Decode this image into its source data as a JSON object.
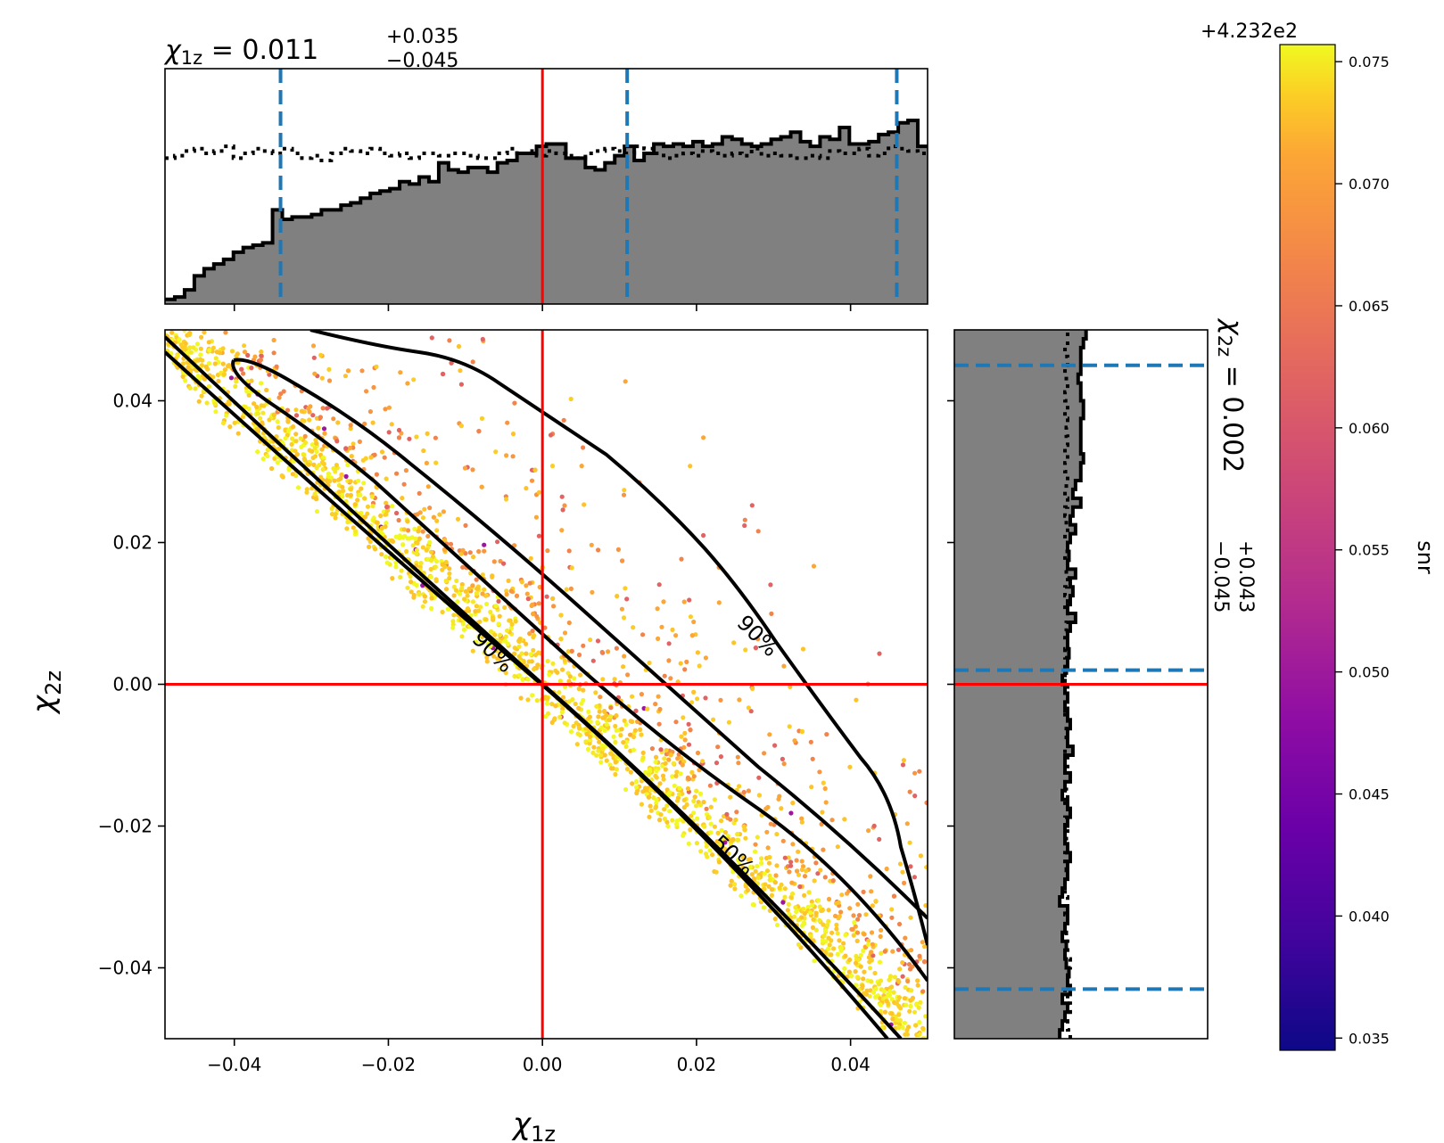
{
  "chart_data": {
    "type": "scatter",
    "x_param": "χ1z",
    "y_param": "χ2z",
    "xlabel_main": "χ",
    "xlabel_sub": "1z",
    "ylabel_main": "χ",
    "ylabel_sub": "2z",
    "xlim": [
      -0.049,
      0.05
    ],
    "ylim": [
      -0.05,
      0.05
    ],
    "x_ticks": [
      "−0.04",
      "−0.02",
      "0.00",
      "0.02",
      "0.04"
    ],
    "x_tick_values": [
      -0.04,
      -0.02,
      0.0,
      0.02,
      0.04
    ],
    "y_ticks": [
      "−0.04",
      "−0.02",
      "0.00",
      "0.02",
      "0.04"
    ],
    "y_tick_values": [
      -0.04,
      -0.02,
      0.0,
      0.02,
      0.04
    ],
    "injection": {
      "x": 0.0,
      "y": 0.0,
      "color": "#ff0000"
    },
    "x_title": {
      "prefix": "χ",
      "sub": "1z",
      "eq": " = 0.011",
      "plus": "+0.035",
      "minus": "−0.045"
    },
    "y_title": {
      "prefix": "χ",
      "sub": "2z",
      "eq": " = 0.002",
      "plus": "+0.043",
      "minus": "−0.045"
    },
    "x_quantiles": [
      -0.034,
      0.011,
      0.046
    ],
    "y_quantiles": [
      -0.043,
      0.002,
      0.045
    ],
    "quantile_color": "#1f77b4",
    "contour_labels": [
      "90%",
      "50%",
      "90%"
    ],
    "colorbar": {
      "label": "snr",
      "offset_text": "+4.232e2",
      "ticks": [
        "0.035",
        "0.040",
        "0.045",
        "0.050",
        "0.055",
        "0.060",
        "0.065",
        "0.070",
        "0.075"
      ],
      "tick_values": [
        0.035,
        0.04,
        0.045,
        0.05,
        0.055,
        0.06,
        0.065,
        0.07,
        0.075
      ],
      "range": [
        0.0345,
        0.0757
      ],
      "colormap": "plasma"
    },
    "hist_fill_color": "#808080",
    "x_marginal_posterior": [
      0.02,
      0.03,
      0.06,
      0.12,
      0.15,
      0.17,
      0.19,
      0.22,
      0.24,
      0.25,
      0.26,
      0.4,
      0.36,
      0.37,
      0.37,
      0.38,
      0.4,
      0.4,
      0.42,
      0.43,
      0.45,
      0.47,
      0.48,
      0.49,
      0.52,
      0.51,
      0.54,
      0.52,
      0.6,
      0.57,
      0.56,
      0.58,
      0.58,
      0.56,
      0.6,
      0.61,
      0.64,
      0.64,
      0.67,
      0.68,
      0.68,
      0.62,
      0.62,
      0.58,
      0.57,
      0.6,
      0.63,
      0.67,
      0.61,
      0.64,
      0.68,
      0.67,
      0.68,
      0.67,
      0.69,
      0.67,
      0.68,
      0.71,
      0.7,
      0.68,
      0.67,
      0.68,
      0.7,
      0.71,
      0.73,
      0.69,
      0.67,
      0.71,
      0.7,
      0.75,
      0.68,
      0.68,
      0.69,
      0.72,
      0.73,
      0.77,
      0.78,
      0.67
    ],
    "x_marginal_prior": [
      0.62,
      0.63,
      0.65,
      0.66,
      0.64,
      0.65,
      0.67,
      0.62,
      0.64,
      0.66,
      0.65,
      0.64,
      0.66,
      0.64,
      0.62,
      0.63,
      0.61,
      0.64,
      0.66,
      0.65,
      0.64,
      0.66,
      0.64,
      0.63,
      0.64,
      0.62,
      0.64,
      0.64,
      0.63,
      0.64,
      0.64,
      0.63,
      0.62,
      0.62,
      0.64,
      0.66,
      0.64,
      0.65,
      0.63,
      0.65,
      0.64,
      0.63,
      0.62,
      0.64,
      0.65,
      0.66,
      0.65,
      0.64,
      0.67,
      0.66,
      0.64,
      0.62,
      0.63,
      0.64,
      0.63,
      0.65,
      0.64,
      0.63,
      0.64,
      0.63,
      0.66,
      0.63,
      0.64,
      0.63,
      0.62,
      0.62,
      0.63,
      0.62,
      0.65,
      0.64,
      0.64,
      0.66,
      0.63,
      0.64,
      0.67,
      0.66,
      0.65,
      0.64
    ],
    "y_marginal_posterior": [
      0.8,
      0.82,
      0.84,
      0.86,
      0.82,
      0.88,
      0.86,
      0.87,
      0.85,
      0.84,
      0.85,
      0.82,
      0.84,
      0.86,
      0.86,
      0.8,
      0.82,
      0.84,
      0.86,
      0.86,
      0.88,
      0.86,
      0.84,
      0.84,
      0.86,
      0.88,
      0.86,
      0.82,
      0.84,
      0.88,
      0.84,
      0.84,
      0.9,
      0.86,
      0.86,
      0.88,
      0.86,
      0.84,
      0.86,
      0.84,
      0.82,
      0.84,
      0.86,
      0.87,
      0.86,
      0.86,
      0.88,
      0.92,
      0.86,
      0.88,
      0.9,
      0.88,
      0.92,
      0.86,
      0.87,
      0.86,
      0.88,
      0.92,
      0.88,
      0.9,
      0.96,
      0.9,
      0.92,
      0.96,
      0.96,
      0.98,
      0.96,
      0.96,
      0.96,
      0.96,
      0.98,
      0.98,
      0.96,
      0.96,
      0.94,
      0.96,
      0.96,
      0.96,
      0.98,
      1.0
    ],
    "y_marginal_prior": [
      0.88,
      0.86,
      0.84,
      0.88,
      0.86,
      0.84,
      0.86,
      0.86,
      0.88,
      0.84,
      0.86,
      0.85,
      0.84,
      0.86,
      0.84,
      0.86,
      0.84,
      0.84,
      0.86,
      0.85,
      0.84,
      0.86,
      0.85,
      0.86,
      0.84,
      0.86,
      0.84,
      0.86,
      0.85,
      0.84,
      0.86,
      0.86,
      0.84,
      0.86,
      0.85,
      0.86,
      0.84,
      0.86,
      0.84,
      0.86,
      0.84,
      0.85,
      0.86,
      0.84,
      0.86,
      0.84,
      0.85,
      0.86,
      0.84,
      0.86,
      0.84,
      0.86,
      0.85,
      0.86,
      0.84,
      0.86,
      0.84,
      0.86,
      0.85,
      0.84,
      0.86,
      0.84,
      0.85,
      0.86,
      0.84,
      0.86,
      0.84,
      0.86,
      0.85,
      0.86,
      0.84,
      0.86,
      0.84,
      0.86,
      0.85,
      0.84,
      0.86,
      0.84,
      0.86,
      0.86
    ]
  }
}
